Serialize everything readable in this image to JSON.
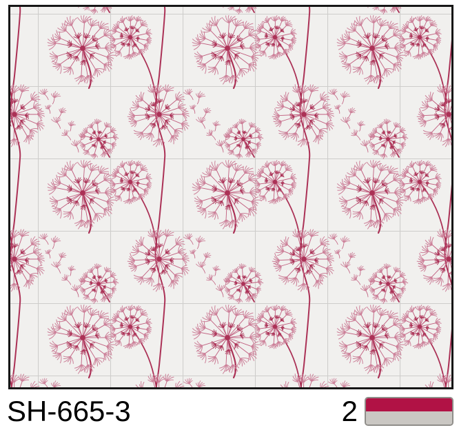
{
  "product": {
    "code": "SH-665-3",
    "quantity": "2"
  },
  "swatch": {
    "primary": "#b11245",
    "secondary": "#cac7c3",
    "border": "#8f8d89"
  },
  "pattern": {
    "name": "dandelion-tile-wallpaper",
    "colors": {
      "background": "#f1f0ee",
      "grid": "#cecdcb",
      "stem": "#ab3156",
      "spoke": "#c05c7d",
      "fan": "#cc7f98",
      "frame": "#161616"
    },
    "tile_size": 105,
    "repeat": 210
  }
}
